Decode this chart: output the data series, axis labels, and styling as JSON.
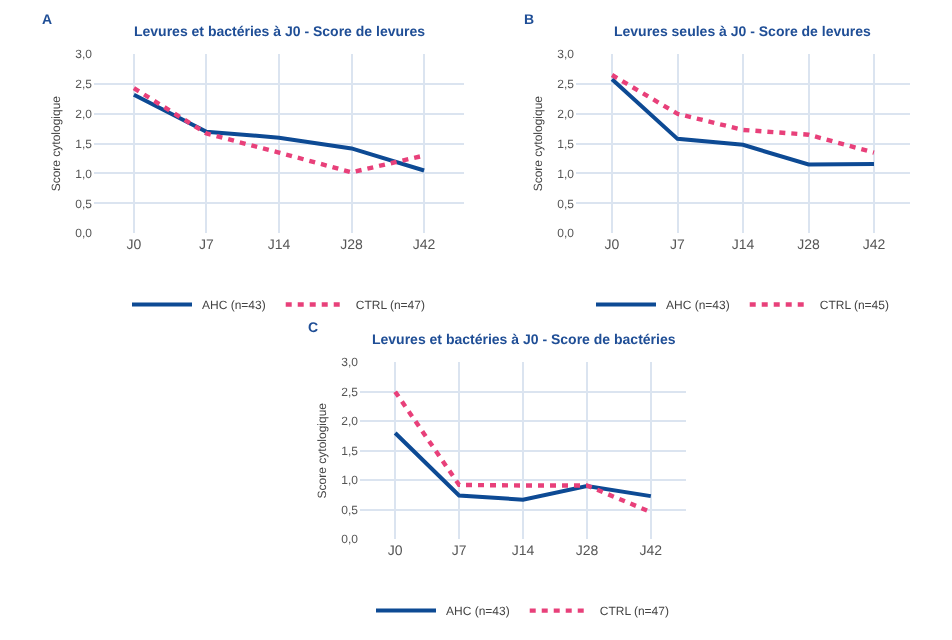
{
  "chart_data": [
    {
      "type": "line",
      "title": "Levures et bactéries à J0 - Score de levures",
      "ylabel": "Score cytologique",
      "annotations": [
        "A"
      ],
      "categories": [
        "J0",
        "J7",
        "J14",
        "J28",
        "J42"
      ],
      "series": [
        {
          "name": "AHC (n=43)",
          "color": "#0d4a94",
          "line_style": "solid",
          "values": [
            2.32,
            1.7,
            1.6,
            1.42,
            1.05
          ]
        },
        {
          "name": "CTRL (n=47)",
          "color": "#e8407a",
          "line_style": "dotted",
          "values": [
            2.43,
            1.67,
            1.35,
            1.02,
            1.3
          ]
        }
      ],
      "ylim": [
        0,
        3
      ],
      "yticks": [
        {
          "value": 0,
          "label": "0,0"
        },
        {
          "value": 0.5,
          "label": "0,5"
        },
        {
          "value": 1,
          "label": "1,0"
        },
        {
          "value": 1.5,
          "label": "1,5"
        },
        {
          "value": 2,
          "label": "2,0"
        },
        {
          "value": 2.5,
          "label": "2,5"
        },
        {
          "value": 3,
          "label": "3,0"
        }
      ],
      "grid": true,
      "legend": "bottom"
    },
    {
      "type": "line",
      "title": "Levures seules à J0 - Score de levures",
      "ylabel": "Score cytologique",
      "annotations": [
        "B"
      ],
      "categories": [
        "J0",
        "J7",
        "J14",
        "J28",
        "J42"
      ],
      "series": [
        {
          "name": "AHC (n=43)",
          "color": "#0d4a94",
          "line_style": "solid",
          "values": [
            2.58,
            1.58,
            1.48,
            1.15,
            1.16
          ]
        },
        {
          "name": "CTRL (n=45)",
          "color": "#e8407a",
          "line_style": "dotted",
          "values": [
            2.65,
            2.0,
            1.73,
            1.65,
            1.35
          ]
        }
      ],
      "ylim": [
        0,
        3
      ],
      "yticks": [
        {
          "value": 0,
          "label": "0,0"
        },
        {
          "value": 0.5,
          "label": "0,5"
        },
        {
          "value": 1,
          "label": "1,0"
        },
        {
          "value": 1.5,
          "label": "1,5"
        },
        {
          "value": 2,
          "label": "2,0"
        },
        {
          "value": 2.5,
          "label": "2,5"
        },
        {
          "value": 3,
          "label": "3,0"
        }
      ],
      "grid": true,
      "legend": "bottom"
    },
    {
      "type": "line",
      "title": "Levures et bactéries à J0 - Score de bactéries",
      "ylabel": "Score cytologique",
      "annotations": [
        "C"
      ],
      "categories": [
        "J0",
        "J7",
        "J14",
        "J28",
        "J42"
      ],
      "series": [
        {
          "name": "AHC (n=43)",
          "color": "#0d4a94",
          "line_style": "solid",
          "values": [
            1.8,
            0.74,
            0.67,
            0.9,
            0.73
          ]
        },
        {
          "name": "CTRL (n=47)",
          "color": "#e8407a",
          "line_style": "dotted",
          "values": [
            2.5,
            0.92,
            0.91,
            0.91,
            0.46
          ]
        }
      ],
      "ylim": [
        0,
        3
      ],
      "yticks": [
        {
          "value": 0,
          "label": "0,0"
        },
        {
          "value": 0.5,
          "label": "0,5"
        },
        {
          "value": 1,
          "label": "1,0"
        },
        {
          "value": 1.5,
          "label": "1,5"
        },
        {
          "value": 2,
          "label": "2,0"
        },
        {
          "value": 2.5,
          "label": "2,5"
        },
        {
          "value": 3,
          "label": "3,0"
        }
      ],
      "grid": true,
      "legend": "bottom"
    }
  ]
}
